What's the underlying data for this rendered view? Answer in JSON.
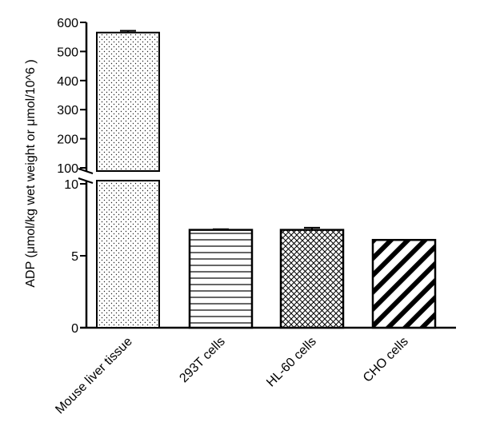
{
  "chart_data": {
    "type": "bar",
    "axis_break": "y",
    "ylabel": "ADP (μmol/kg wet weight or μmol/10^6 )",
    "categories": [
      "Mouse liver tissue",
      "293T cells",
      "HL-60 cells",
      "CHO cells"
    ],
    "values": [
      565,
      6.8,
      6.8,
      6.1
    ],
    "errors": [
      6,
      0.05,
      0.15,
      0.0
    ],
    "patterns": [
      "dots",
      "horizontal-lines",
      "crosshatch",
      "diagonal-stripes"
    ],
    "upper_segment": {
      "ylim": [
        100,
        600
      ],
      "ticks": [
        "600",
        "500",
        "400",
        "300",
        "200",
        "100"
      ]
    },
    "lower_segment": {
      "ylim": [
        0,
        10
      ],
      "ticks": [
        "10",
        "5",
        "0"
      ]
    },
    "colors": {
      "bar_fill": "#ffffff",
      "bar_stroke": "#000000",
      "axis": "#000000"
    }
  }
}
